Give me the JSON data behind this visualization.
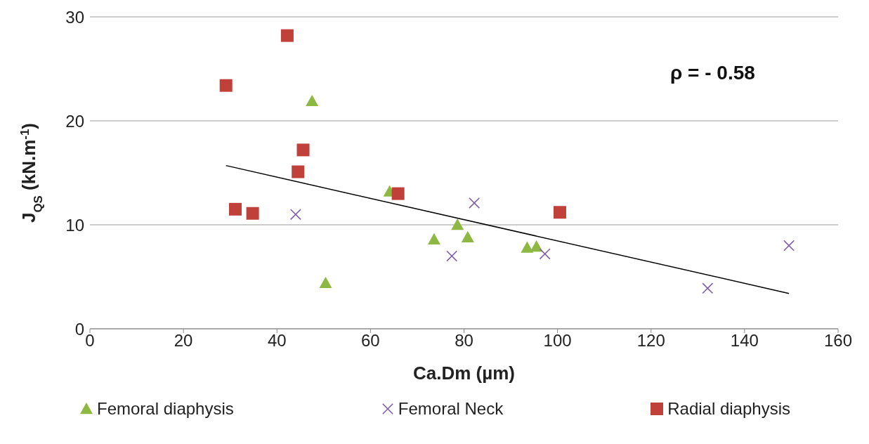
{
  "chart_data": {
    "type": "scatter",
    "xlabel": "Ca.Dm (µm)",
    "ylabel": "J$_{QS}$ (kN.m$^{-1}$)",
    "annotations": [
      "ρ = - 0.58"
    ],
    "xlim": [
      0,
      160
    ],
    "xticks": [
      0,
      20,
      40,
      60,
      80,
      100,
      120,
      140,
      160
    ],
    "ylim": [
      0,
      30
    ],
    "yticks": [
      0,
      10,
      20,
      30
    ],
    "grid": "y",
    "legend": "bottom",
    "series": [
      {
        "name": "Femoral diaphysis",
        "color": "#8db842",
        "marker": "triangle",
        "x": [
          47.5,
          64.1,
          73.6,
          78.6,
          80.8,
          50.4,
          93.5,
          95.5
        ],
        "values": [
          21.9,
          13.2,
          8.6,
          10.0,
          8.8,
          4.4,
          7.8,
          7.9
        ]
      },
      {
        "name": "Femoral Neck",
        "color": "#7f5fa8",
        "marker": "cross",
        "x": [
          44.0,
          82.2,
          77.4,
          97.3,
          132.1,
          149.5
        ],
        "values": [
          11.0,
          12.1,
          7.0,
          7.2,
          3.9,
          8.0
        ]
      },
      {
        "name": "Radial diaphysis",
        "color": "#c0403a",
        "marker": "square",
        "x": [
          29.1,
          42.2,
          45.6,
          44.5,
          31.1,
          34.8,
          65.9,
          100.5
        ],
        "values": [
          23.4,
          28.2,
          17.2,
          15.1,
          11.5,
          11.1,
          13.0,
          11.2
        ]
      },
      {
        "type": "line",
        "color": "#000000",
        "marker": "none",
        "x": [
          29.1,
          149.5
        ],
        "values": [
          15.7,
          3.4
        ]
      }
    ]
  }
}
